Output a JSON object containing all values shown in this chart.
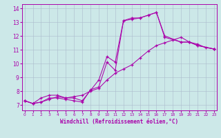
{
  "xlabel": "Windchill (Refroidissement éolien,°C)",
  "bg_color": "#cce8e8",
  "line_color": "#aa00aa",
  "grid_color": "#aabbcc",
  "x_ticks": [
    0,
    1,
    2,
    3,
    4,
    5,
    6,
    7,
    8,
    9,
    10,
    11,
    12,
    13,
    14,
    15,
    16,
    17,
    18,
    19,
    20,
    21,
    22,
    23
  ],
  "y_ticks": [
    7,
    8,
    9,
    10,
    11,
    12,
    13,
    14
  ],
  "ylim": [
    6.6,
    14.3
  ],
  "xlim": [
    -0.3,
    23.3
  ],
  "series1_x": [
    0,
    1,
    2,
    3,
    4,
    5,
    6,
    7,
    8,
    9,
    10,
    11,
    12,
    13,
    14,
    15,
    16,
    17,
    19,
    20,
    21,
    23
  ],
  "series1_y": [
    7.3,
    7.1,
    7.2,
    7.5,
    7.5,
    7.4,
    7.3,
    7.2,
    8.1,
    8.3,
    10.1,
    9.5,
    13.1,
    13.2,
    13.3,
    13.5,
    13.7,
    12.0,
    11.55,
    11.55,
    11.3,
    11.05
  ],
  "series2_x": [
    0,
    1,
    2,
    3,
    4,
    5,
    6,
    7,
    8,
    9,
    10,
    11,
    12,
    13,
    14,
    15,
    16,
    17,
    19,
    20,
    21,
    23
  ],
  "series2_y": [
    7.3,
    7.1,
    7.5,
    7.7,
    7.7,
    7.5,
    7.5,
    7.3,
    8.05,
    8.8,
    10.5,
    10.1,
    13.1,
    13.3,
    13.3,
    13.5,
    13.7,
    11.9,
    11.55,
    11.55,
    11.3,
    11.05
  ],
  "series3_x": [
    0,
    1,
    2,
    3,
    4,
    5,
    6,
    7,
    8,
    9,
    10,
    11,
    12,
    13,
    14,
    15,
    16,
    17,
    18,
    19,
    20,
    21,
    22,
    23
  ],
  "series3_y": [
    7.3,
    7.1,
    7.2,
    7.4,
    7.6,
    7.5,
    7.6,
    7.7,
    8.0,
    8.2,
    8.8,
    9.3,
    9.6,
    9.9,
    10.4,
    10.9,
    11.3,
    11.5,
    11.7,
    11.9,
    11.55,
    11.4,
    11.15,
    11.05
  ]
}
